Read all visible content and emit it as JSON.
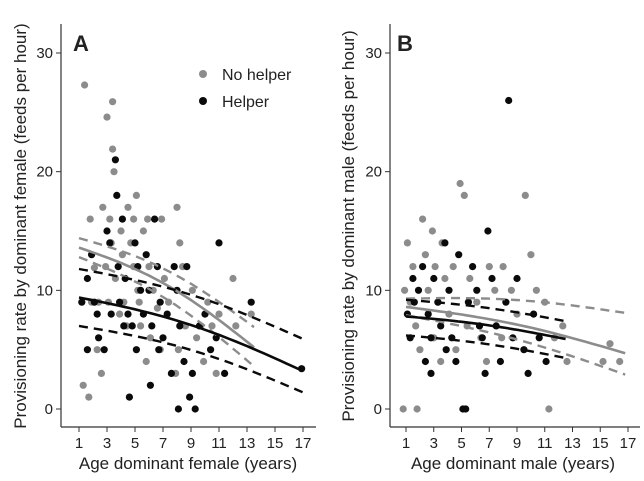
{
  "colors": {
    "no_helper": "#8c8c8c",
    "helper": "#0a0a0a",
    "axis": "#333333"
  },
  "chart_data": [
    {
      "panel": "A",
      "type": "scatter",
      "xlabel": "Age dominant female (years)",
      "ylabel": "Provisioning rate by dominant female (feeds per hour)",
      "xlim": [
        0,
        17.5
      ],
      "ylim": [
        -1.5,
        31
      ],
      "xticks": [
        1,
        3,
        5,
        7,
        9,
        11,
        13,
        15,
        17
      ],
      "yticks": [
        0,
        10,
        20,
        30
      ],
      "grid": false,
      "legend_position": "top-right",
      "series": [
        {
          "name": "No helper",
          "color": "#8c8c8c",
          "points": [
            [
              1.4,
              27.3
            ],
            [
              1.9,
              9
            ],
            [
              1.8,
              16
            ],
            [
              2.1,
              11.9
            ],
            [
              2.4,
              9
            ],
            [
              2.7,
              17
            ],
            [
              3,
              24.6
            ],
            [
              3.4,
              25.9
            ],
            [
              3.4,
              21.9
            ],
            [
              3.5,
              20
            ],
            [
              3.2,
              16
            ],
            [
              3.3,
              14
            ],
            [
              2.9,
              12
            ],
            [
              3.6,
              11
            ],
            [
              4,
              15
            ],
            [
              4.1,
              13
            ],
            [
              4.2,
              9
            ],
            [
              3.9,
              8
            ],
            [
              4.5,
              17
            ],
            [
              4.7,
              14
            ],
            [
              4.9,
              12
            ],
            [
              5.1,
              18
            ],
            [
              4.9,
              16
            ],
            [
              5.2,
              10
            ],
            [
              5.3,
              9
            ],
            [
              5.4,
              7
            ],
            [
              5.6,
              15
            ],
            [
              5.9,
              16
            ],
            [
              6,
              12
            ],
            [
              6.3,
              10
            ],
            [
              6.6,
              8.5
            ],
            [
              6.9,
              16
            ],
            [
              7.1,
              11
            ],
            [
              7.4,
              9
            ],
            [
              8,
              17
            ],
            [
              8.2,
              14
            ],
            [
              8.4,
              12
            ],
            [
              8.6,
              7
            ],
            [
              8.1,
              5
            ],
            [
              9.1,
              10
            ],
            [
              9.4,
              6
            ],
            [
              9.7,
              7
            ],
            [
              10.2,
              9
            ],
            [
              10.5,
              7
            ],
            [
              11,
              8
            ],
            [
              12,
              11
            ],
            [
              12.2,
              7
            ],
            [
              13.3,
              8
            ],
            [
              2.3,
              5
            ],
            [
              2.6,
              3
            ],
            [
              3.1,
              9
            ],
            [
              4.4,
              7
            ],
            [
              5.8,
              4
            ],
            [
              6.1,
              6
            ],
            [
              6.8,
              5
            ],
            [
              7.9,
              3
            ],
            [
              9.9,
              4
            ],
            [
              10.8,
              3
            ],
            [
              1.3,
              2
            ],
            [
              1.7,
              1
            ]
          ]
        },
        {
          "name": "Helper",
          "color": "#0a0a0a",
          "points": [
            [
              1.2,
              9
            ],
            [
              1.6,
              11
            ],
            [
              1.9,
              13
            ],
            [
              2.3,
              8
            ],
            [
              2.4,
              6
            ],
            [
              2.8,
              5
            ],
            [
              3,
              15
            ],
            [
              3.2,
              14
            ],
            [
              3.3,
              8
            ],
            [
              3.6,
              21
            ],
            [
              3.7,
              18
            ],
            [
              3.8,
              12
            ],
            [
              3.9,
              9
            ],
            [
              4.1,
              16
            ],
            [
              4.3,
              11
            ],
            [
              4.5,
              8
            ],
            [
              4.8,
              7
            ],
            [
              5,
              14
            ],
            [
              5.2,
              12
            ],
            [
              5.4,
              10
            ],
            [
              5.6,
              8
            ],
            [
              5.8,
              13
            ],
            [
              6,
              10
            ],
            [
              6.2,
              7
            ],
            [
              6.4,
              16
            ],
            [
              6.6,
              12
            ],
            [
              6.8,
              9
            ],
            [
              7,
              6
            ],
            [
              7.3,
              8
            ],
            [
              7.6,
              3
            ],
            [
              7.8,
              12
            ],
            [
              8,
              10
            ],
            [
              8.2,
              7
            ],
            [
              8.5,
              4
            ],
            [
              8.9,
              1
            ],
            [
              9.1,
              3
            ],
            [
              9.3,
              0
            ],
            [
              9.6,
              7
            ],
            [
              10,
              8
            ],
            [
              10.4,
              5
            ],
            [
              10.8,
              6
            ],
            [
              11,
              14
            ],
            [
              11.4,
              3
            ],
            [
              13.3,
              9
            ],
            [
              16.9,
              3.4
            ],
            [
              1.6,
              5
            ],
            [
              2.1,
              9
            ],
            [
              4.2,
              7
            ],
            [
              4.6,
              1
            ],
            [
              5.1,
              5
            ],
            [
              6.1,
              2
            ],
            [
              6.7,
              5
            ],
            [
              8.1,
              0
            ],
            [
              8.7,
              12
            ]
          ]
        }
      ],
      "fits": [
        {
          "name": "No helper",
          "color": "#8c8c8c",
          "x": [
            1,
            13.5
          ],
          "fit": [
            13.6,
            5.2
          ],
          "ci_upper": [
            14.4,
            6.9
          ],
          "ci_lower": [
            12.8,
            3.6
          ]
        },
        {
          "name": "Helper",
          "color": "#0a0a0a",
          "x": [
            1,
            17
          ],
          "fit": [
            9.4,
            3.2
          ],
          "ci_upper": [
            11.8,
            5.9
          ],
          "ci_lower": [
            7,
            1.4
          ]
        }
      ]
    },
    {
      "panel": "B",
      "type": "scatter",
      "xlabel": "Age dominant male (years)",
      "ylabel": "Provisioning rate by dominant male (feeds per hour)",
      "xlim": [
        0,
        17.5
      ],
      "ylim": [
        -1.5,
        31
      ],
      "xticks": [
        1,
        3,
        5,
        7,
        9,
        11,
        13,
        15,
        17
      ],
      "yticks": [
        0,
        10,
        20,
        30
      ],
      "grid": false,
      "series": [
        {
          "name": "No helper",
          "color": "#8c8c8c",
          "points": [
            [
              0.9,
              10
            ],
            [
              1.1,
              14
            ],
            [
              1.3,
              9
            ],
            [
              1.5,
              12
            ],
            [
              1.7,
              7
            ],
            [
              1.8,
              0
            ],
            [
              2.2,
              16
            ],
            [
              2.4,
              13
            ],
            [
              2.6,
              10
            ],
            [
              2.9,
              15
            ],
            [
              3.1,
              12
            ],
            [
              3.3,
              9
            ],
            [
              3.6,
              14
            ],
            [
              3.8,
              11
            ],
            [
              4.1,
              8
            ],
            [
              4.4,
              12
            ],
            [
              4.9,
              19
            ],
            [
              5.2,
              18
            ],
            [
              5.6,
              11
            ],
            [
              6.1,
              9
            ],
            [
              6.4,
              6
            ],
            [
              7,
              12
            ],
            [
              7.4,
              10
            ],
            [
              8,
              12
            ],
            [
              8.6,
              10
            ],
            [
              9,
              8
            ],
            [
              9.6,
              18
            ],
            [
              10,
              13
            ],
            [
              10.4,
              10
            ],
            [
              11,
              9
            ],
            [
              11.3,
              0
            ],
            [
              11.7,
              6
            ],
            [
              12.3,
              7
            ],
            [
              12.6,
              4
            ],
            [
              15.2,
              4
            ],
            [
              15.7,
              5.5
            ],
            [
              16.4,
              4
            ],
            [
              0.8,
              0
            ],
            [
              2,
              5
            ],
            [
              3,
              6
            ],
            [
              3.5,
              4
            ],
            [
              4.6,
              5
            ],
            [
              5.4,
              7
            ],
            [
              6.8,
              4
            ],
            [
              7.9,
              6
            ]
          ]
        },
        {
          "name": "Helper",
          "color": "#0a0a0a",
          "points": [
            [
              1.1,
              8
            ],
            [
              1.3,
              6
            ],
            [
              1.6,
              9
            ],
            [
              1.9,
              10
            ],
            [
              2.2,
              12
            ],
            [
              2.4,
              4
            ],
            [
              2.6,
              8
            ],
            [
              2.8,
              3
            ],
            [
              3,
              11
            ],
            [
              3.3,
              9
            ],
            [
              3.5,
              7
            ],
            [
              3.8,
              14
            ],
            [
              4.1,
              10
            ],
            [
              4.3,
              6
            ],
            [
              4.6,
              4
            ],
            [
              4.8,
              13
            ],
            [
              5.1,
              0
            ],
            [
              5.3,
              0
            ],
            [
              5.5,
              9
            ],
            [
              5.8,
              12
            ],
            [
              6.1,
              10
            ],
            [
              6.3,
              7
            ],
            [
              6.7,
              3
            ],
            [
              6.9,
              15
            ],
            [
              7.2,
              11
            ],
            [
              7.5,
              7
            ],
            [
              7.8,
              4
            ],
            [
              8.2,
              9
            ],
            [
              8.4,
              26
            ],
            [
              8.7,
              6
            ],
            [
              9,
              11
            ],
            [
              9.5,
              5
            ],
            [
              9.8,
              3
            ],
            [
              10.2,
              8
            ],
            [
              10.6,
              6
            ],
            [
              11.1,
              4
            ],
            [
              1.5,
              11
            ],
            [
              2.8,
              6
            ],
            [
              3.9,
              5
            ],
            [
              6.5,
              6
            ]
          ]
        }
      ],
      "fits": [
        {
          "name": "No helper",
          "color": "#8c8c8c",
          "x": [
            1,
            16.8
          ],
          "fit": [
            8.6,
            4.7
          ],
          "ci_upper": [
            9.3,
            8.1
          ],
          "ci_lower": [
            7.9,
            2.9
          ]
        },
        {
          "name": "Helper",
          "color": "#0a0a0a",
          "x": [
            1,
            12.5
          ],
          "fit": [
            7.8,
            5.9
          ],
          "ci_upper": [
            9.2,
            7.4
          ],
          "ci_lower": [
            6.2,
            4.3
          ]
        }
      ]
    }
  ]
}
